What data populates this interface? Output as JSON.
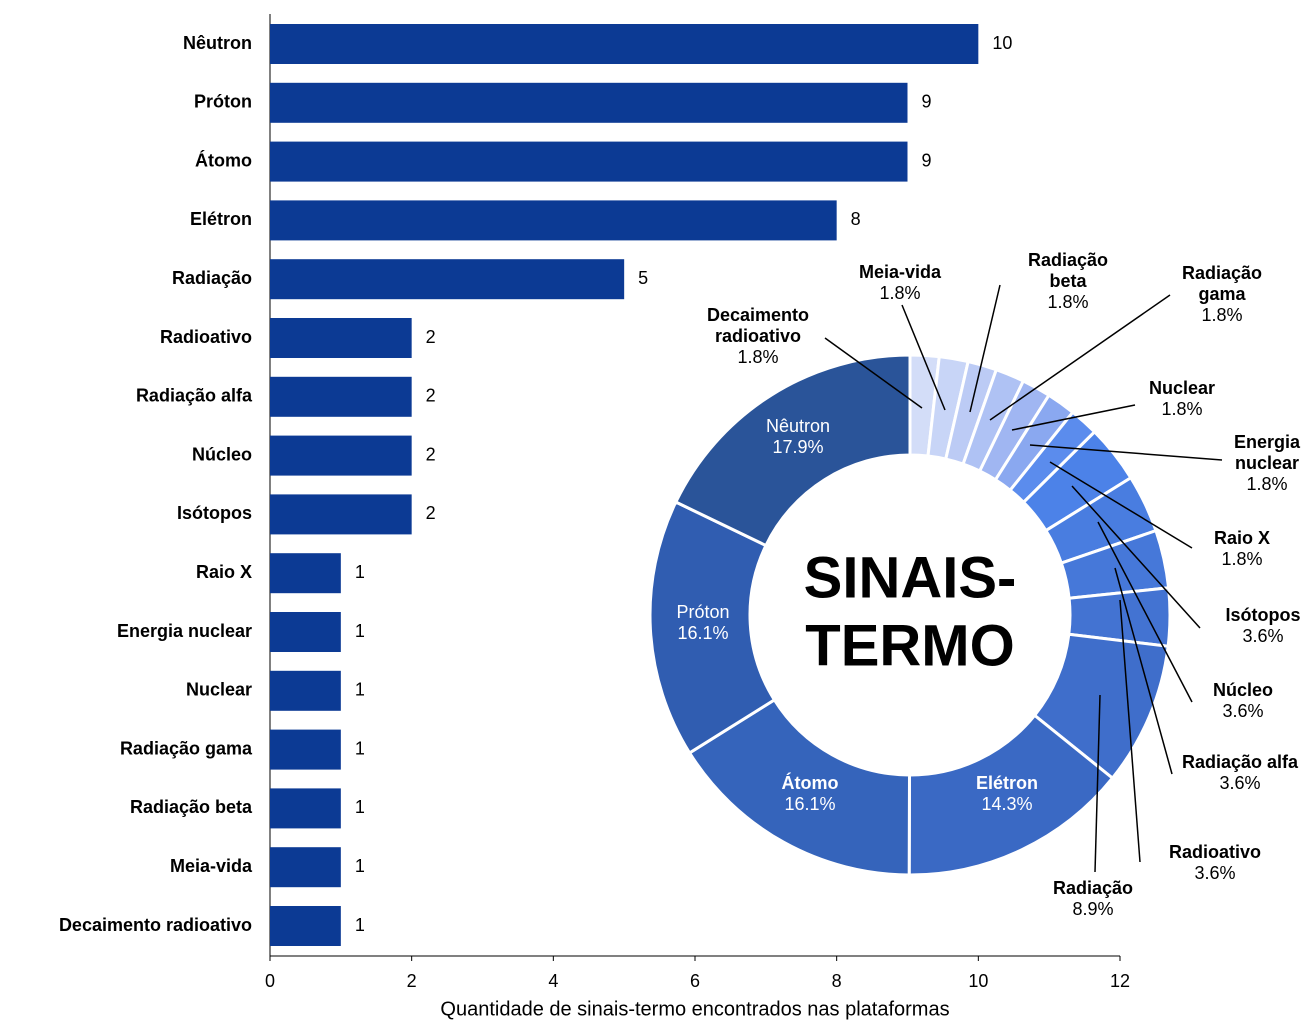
{
  "chart_data": [
    {
      "type": "bar",
      "orientation": "horizontal",
      "categories": [
        "Nêutron",
        "Próton",
        "Átomo",
        "Elétron",
        "Radiação",
        "Radioativo",
        "Radiação alfa",
        "Núcleo",
        "Isótopos",
        "Raio X",
        "Energia nuclear",
        "Nuclear",
        "Radiação gama",
        "Radiação beta",
        "Meia-vida",
        "Decaimento radioativo"
      ],
      "values": [
        10,
        9,
        9,
        8,
        5,
        2,
        2,
        2,
        2,
        1,
        1,
        1,
        1,
        1,
        1,
        1
      ],
      "color": "#0c3a94",
      "xlim": [
        0,
        12
      ],
      "xticks": [
        0,
        2,
        4,
        6,
        8,
        10,
        12
      ],
      "xlabel": "Quantidade de sinais-termo encontrados nas plataformas",
      "grid": false
    },
    {
      "type": "donut",
      "center_text": [
        "SINAIS-",
        "TERMO"
      ],
      "categories": [
        "Decaimento radioativo",
        "Meia-vida",
        "Radiação beta",
        "Radiação gama",
        "Nuclear",
        "Energia nuclear",
        "Raio X",
        "Isótopos",
        "Núcleo",
        "Radiação alfa",
        "Radioativo",
        "Radiação",
        "Elétron",
        "Átomo",
        "Próton",
        "Nêutron"
      ],
      "values": [
        1.8,
        1.8,
        1.8,
        1.8,
        1.8,
        1.8,
        1.8,
        3.6,
        3.6,
        3.6,
        3.6,
        8.9,
        14.3,
        16.1,
        16.1,
        17.9
      ],
      "value_labels": [
        "1.8%",
        "1.8%",
        "1.8%",
        "1.8%",
        "1.8%",
        "1.8%",
        "1.8%",
        "3.6%",
        "3.6%",
        "3.6%",
        "3.6%",
        "8.9%",
        "14.3%",
        "16.1%",
        "16.1%",
        "17.9%"
      ],
      "colors": [
        "#d3ddf8",
        "#c8d5f7",
        "#bccbf5",
        "#afc2f4",
        "#a0b6f2",
        "#8aa8f0",
        "#5b8ced",
        "#4c82e8",
        "#497de0",
        "#4678d9",
        "#4373d2",
        "#3f6ecb",
        "#3a69c4",
        "#3564bb",
        "#305db1",
        "#2a5499"
      ]
    }
  ]
}
